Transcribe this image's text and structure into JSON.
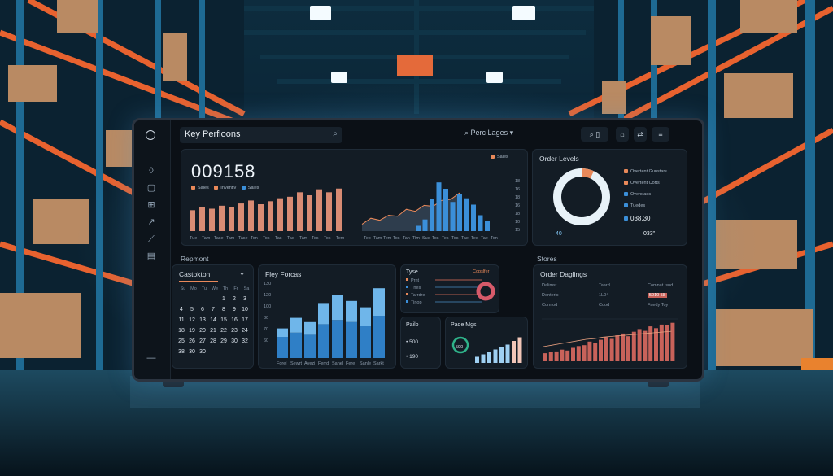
{
  "colors": {
    "accent_orange": "#e9895a",
    "accent_blue": "#3b8fd9",
    "bg": "#0b1016",
    "panel": "#131c25",
    "donut_ring": "#e8f2f8",
    "donut_accent": "#e9895a",
    "red": "#c8625a"
  },
  "topbar": {
    "search_text": "Key Perfloons",
    "search_icon": "search-icon",
    "center_label": "Perc Lages",
    "center_chevron": "▾",
    "btn_a": "▯",
    "btn_b": "⌂",
    "btn_c": "⇄",
    "btn_d": "≡"
  },
  "kpi": {
    "value": "009158",
    "legend": [
      "Sales",
      "Inventiv",
      "Sales"
    ],
    "ax_right": [
      "18",
      "16",
      "18",
      "16",
      "18",
      "10",
      "15"
    ],
    "bar_labels": [
      "Tue",
      "Tam",
      "Tase",
      "Tam",
      "Tase",
      "Ton",
      "Tos",
      "Tas",
      "Tae",
      "Tam",
      "Tes",
      "Tos",
      "Tem"
    ],
    "line_labels": [
      "Teo",
      "Tam",
      "Tem",
      "Tos",
      "Tan",
      "Tim",
      "Sue",
      "Tos",
      "Tes",
      "Tos",
      "Tae",
      "Tee",
      "Tae",
      "Ton"
    ],
    "top_right": "Sales"
  },
  "chart_data": [
    {
      "type": "bar",
      "name": "kpi-bars",
      "values": [
        28,
        32,
        30,
        34,
        32,
        37,
        41,
        36,
        40,
        44,
        46,
        52,
        48,
        56,
        52,
        57
      ]
    },
    {
      "type": "area",
      "name": "kpi-line",
      "values": [
        22,
        34,
        30,
        40,
        38,
        52,
        48,
        60,
        58,
        70,
        72,
        85
      ]
    },
    {
      "type": "bar",
      "name": "kpi-blue-bars",
      "values": [
        10,
        22,
        60,
        92,
        80,
        55,
        70,
        62,
        50,
        30,
        20
      ]
    },
    {
      "type": "pie",
      "name": "order-levels",
      "values": [
        7,
        93
      ]
    },
    {
      "type": "bar",
      "name": "key-forcas",
      "stacked": true,
      "values_base": [
        20,
        24,
        22,
        32,
        36,
        34,
        30,
        40
      ],
      "values_top": [
        8,
        14,
        12,
        20,
        24,
        20,
        18,
        26
      ]
    },
    {
      "type": "bar",
      "name": "pade-mgs",
      "values": [
        10,
        14,
        18,
        22,
        26,
        30,
        36,
        42
      ]
    },
    {
      "type": "bar",
      "name": "order-daglings",
      "values": [
        18,
        20,
        22,
        26,
        24,
        30,
        34,
        36,
        44,
        40,
        48,
        54,
        50,
        58,
        62,
        56,
        66,
        72,
        68,
        78,
        74,
        82,
        80,
        86
      ]
    },
    {
      "type": "line",
      "name": "order-daglings-line",
      "values": [
        20,
        22,
        24,
        26,
        28,
        30,
        31,
        33,
        34,
        35,
        36,
        37,
        38,
        39,
        40,
        41
      ]
    }
  ],
  "order_levels": {
    "title": "Order Levels",
    "legend": [
      "Overtent Gunstars",
      "Overtent Corts",
      "Overstaes",
      "Tuedes"
    ],
    "value": "038.30",
    "left_num": "40",
    "right_num": "033\""
  },
  "row2": {
    "left_title": "Repmont",
    "right_title": "Stores"
  },
  "calendar": {
    "title": "Castokton",
    "days": [
      "Su",
      "Mo",
      "Tu",
      "We",
      "Th",
      "Fr",
      "Sa"
    ],
    "cells": [
      "1",
      "2",
      "3",
      "4",
      "5",
      "6",
      "7",
      "8",
      "9",
      "10",
      "11",
      "12",
      "13",
      "14",
      "15",
      "16",
      "17",
      "18",
      "19",
      "20",
      "21",
      "22",
      "23",
      "24",
      "25",
      "26",
      "27",
      "28",
      "29",
      "30",
      "32",
      "38",
      "30",
      "30"
    ]
  },
  "forcas": {
    "title": "Fley Forcas",
    "y_labels": [
      "130",
      "120",
      "100",
      "80",
      "70",
      "60"
    ],
    "x_labels": [
      "Forel",
      "Sewrt",
      "Avezi",
      "Ferrd",
      "Sanel",
      "Fere",
      "Sanle",
      "Sarkt"
    ]
  },
  "types": {
    "title": "Tyse",
    "tag": "Copslfer",
    "rows": [
      "Prnt",
      "Tnes",
      "Tarrdre",
      "Tinop"
    ]
  },
  "paile": {
    "title": "Pailo",
    "v1": "500",
    "v2": "190"
  },
  "pade": {
    "title": "Pade Mgs",
    "gauge": "590"
  },
  "daglings": {
    "title": "Order Daglings",
    "rows": [
      [
        "Dalimst",
        "Taard",
        "Comnat Isnd"
      ],
      [
        "Denteric",
        "1L04",
        "5010 58"
      ],
      [
        "Comtod",
        "Cood",
        "Faedy Toy"
      ]
    ]
  }
}
